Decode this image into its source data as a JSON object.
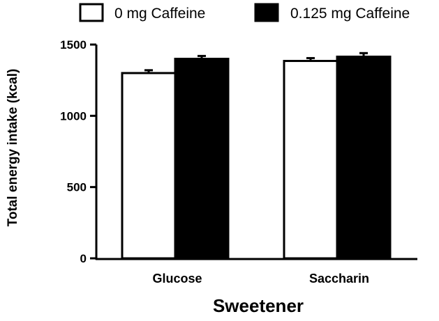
{
  "chart_data": {
    "type": "bar",
    "categories": [
      "Glucose",
      "Saccharin"
    ],
    "series": [
      {
        "name": "0 mg Caffeine",
        "values": [
          1300,
          1385
        ],
        "errors": [
          20,
          20
        ],
        "fill": "#ffffff"
      },
      {
        "name": "0.125 mg Caffeine",
        "values": [
          1400,
          1415
        ],
        "errors": [
          20,
          25
        ],
        "fill": "#000000"
      }
    ],
    "xlabel": "Sweetener",
    "ylabel": "Total energy intake (kcal)",
    "ylim": [
      0,
      1500
    ],
    "yticks": [
      "0",
      "500",
      "1000",
      "1500"
    ],
    "ytick_values": [
      0,
      500,
      1000,
      1500
    ],
    "grid": false,
    "legend_position": "top"
  }
}
